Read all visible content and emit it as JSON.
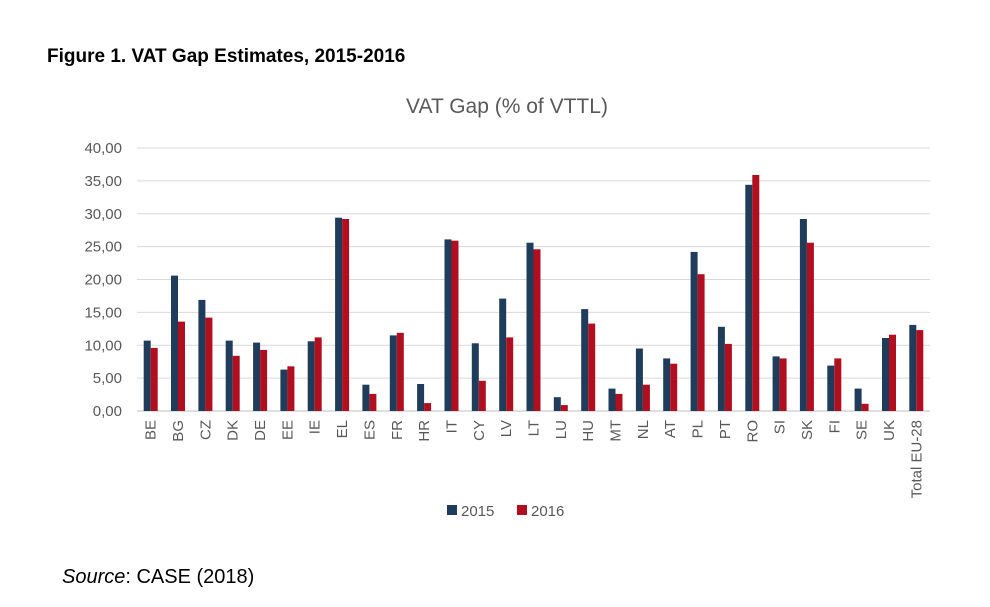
{
  "figure": {
    "title": "Figure 1. VAT Gap Estimates, 2015-2016",
    "source_label": "Source",
    "source_text": ": CASE (2018)"
  },
  "chart_data": {
    "type": "bar",
    "title": "VAT Gap (% of VTTL)",
    "xlabel": "",
    "ylabel": "",
    "ylim": [
      0,
      40
    ],
    "yticks": [
      "0,00",
      "5,00",
      "10,00",
      "15,00",
      "20,00",
      "25,00",
      "30,00",
      "35,00",
      "40,00"
    ],
    "grid": true,
    "legend_position": "bottom",
    "categories": [
      "BE",
      "BG",
      "CZ",
      "DK",
      "DE",
      "EE",
      "IE",
      "EL",
      "ES",
      "FR",
      "HR",
      "IT",
      "CY",
      "LV",
      "LT",
      "LU",
      "HU",
      "MT",
      "NL",
      "AT",
      "PL",
      "PT",
      "RO",
      "SI",
      "SK",
      "FI",
      "SE",
      "UK",
      "Total EU-28"
    ],
    "series": [
      {
        "name": "2015",
        "color": "#1f3c5a",
        "values": [
          10.7,
          20.6,
          16.9,
          10.7,
          10.4,
          6.3,
          10.6,
          29.4,
          4.0,
          11.5,
          4.1,
          26.1,
          10.3,
          17.1,
          25.6,
          2.1,
          15.5,
          3.4,
          9.5,
          8.0,
          24.2,
          12.8,
          34.4,
          8.3,
          29.2,
          6.9,
          3.4,
          11.1,
          13.1
        ]
      },
      {
        "name": "2016",
        "color": "#b10f1f",
        "values": [
          9.6,
          13.6,
          14.2,
          8.4,
          9.3,
          6.8,
          11.2,
          29.2,
          2.6,
          11.9,
          1.2,
          25.9,
          4.6,
          11.2,
          24.6,
          0.9,
          13.3,
          2.6,
          4.0,
          7.2,
          20.8,
          10.2,
          35.9,
          8.0,
          25.6,
          8.0,
          1.1,
          11.6,
          12.3
        ]
      }
    ]
  }
}
